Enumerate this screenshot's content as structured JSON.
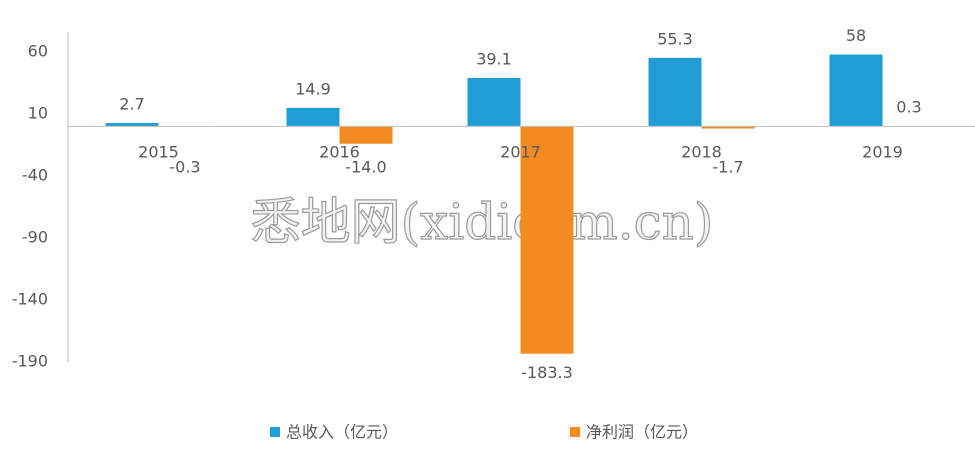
{
  "chart_data": {
    "type": "bar",
    "categories": [
      "2015",
      "2016",
      "2017",
      "2018",
      "2019"
    ],
    "series": [
      {
        "name": "总收入（亿元）",
        "color": "#1f9dd4",
        "values": [
          2.7,
          14.9,
          39.1,
          55.3,
          58
        ]
      },
      {
        "name": "净利润（亿元）",
        "color": "#f38b22",
        "values": [
          -0.3,
          -14,
          -183.3,
          -1.7,
          0.3
        ],
        "value_labels": [
          "-0.3",
          "-14.0",
          "-183.3",
          "-1.7",
          "0.3"
        ]
      }
    ],
    "ylim": [
      -190,
      60
    ],
    "yticks": [
      60,
      10,
      -40,
      -90,
      -140,
      -190
    ],
    "legend": "bottom",
    "watermark": "悉地网(xidicom.cn)"
  }
}
